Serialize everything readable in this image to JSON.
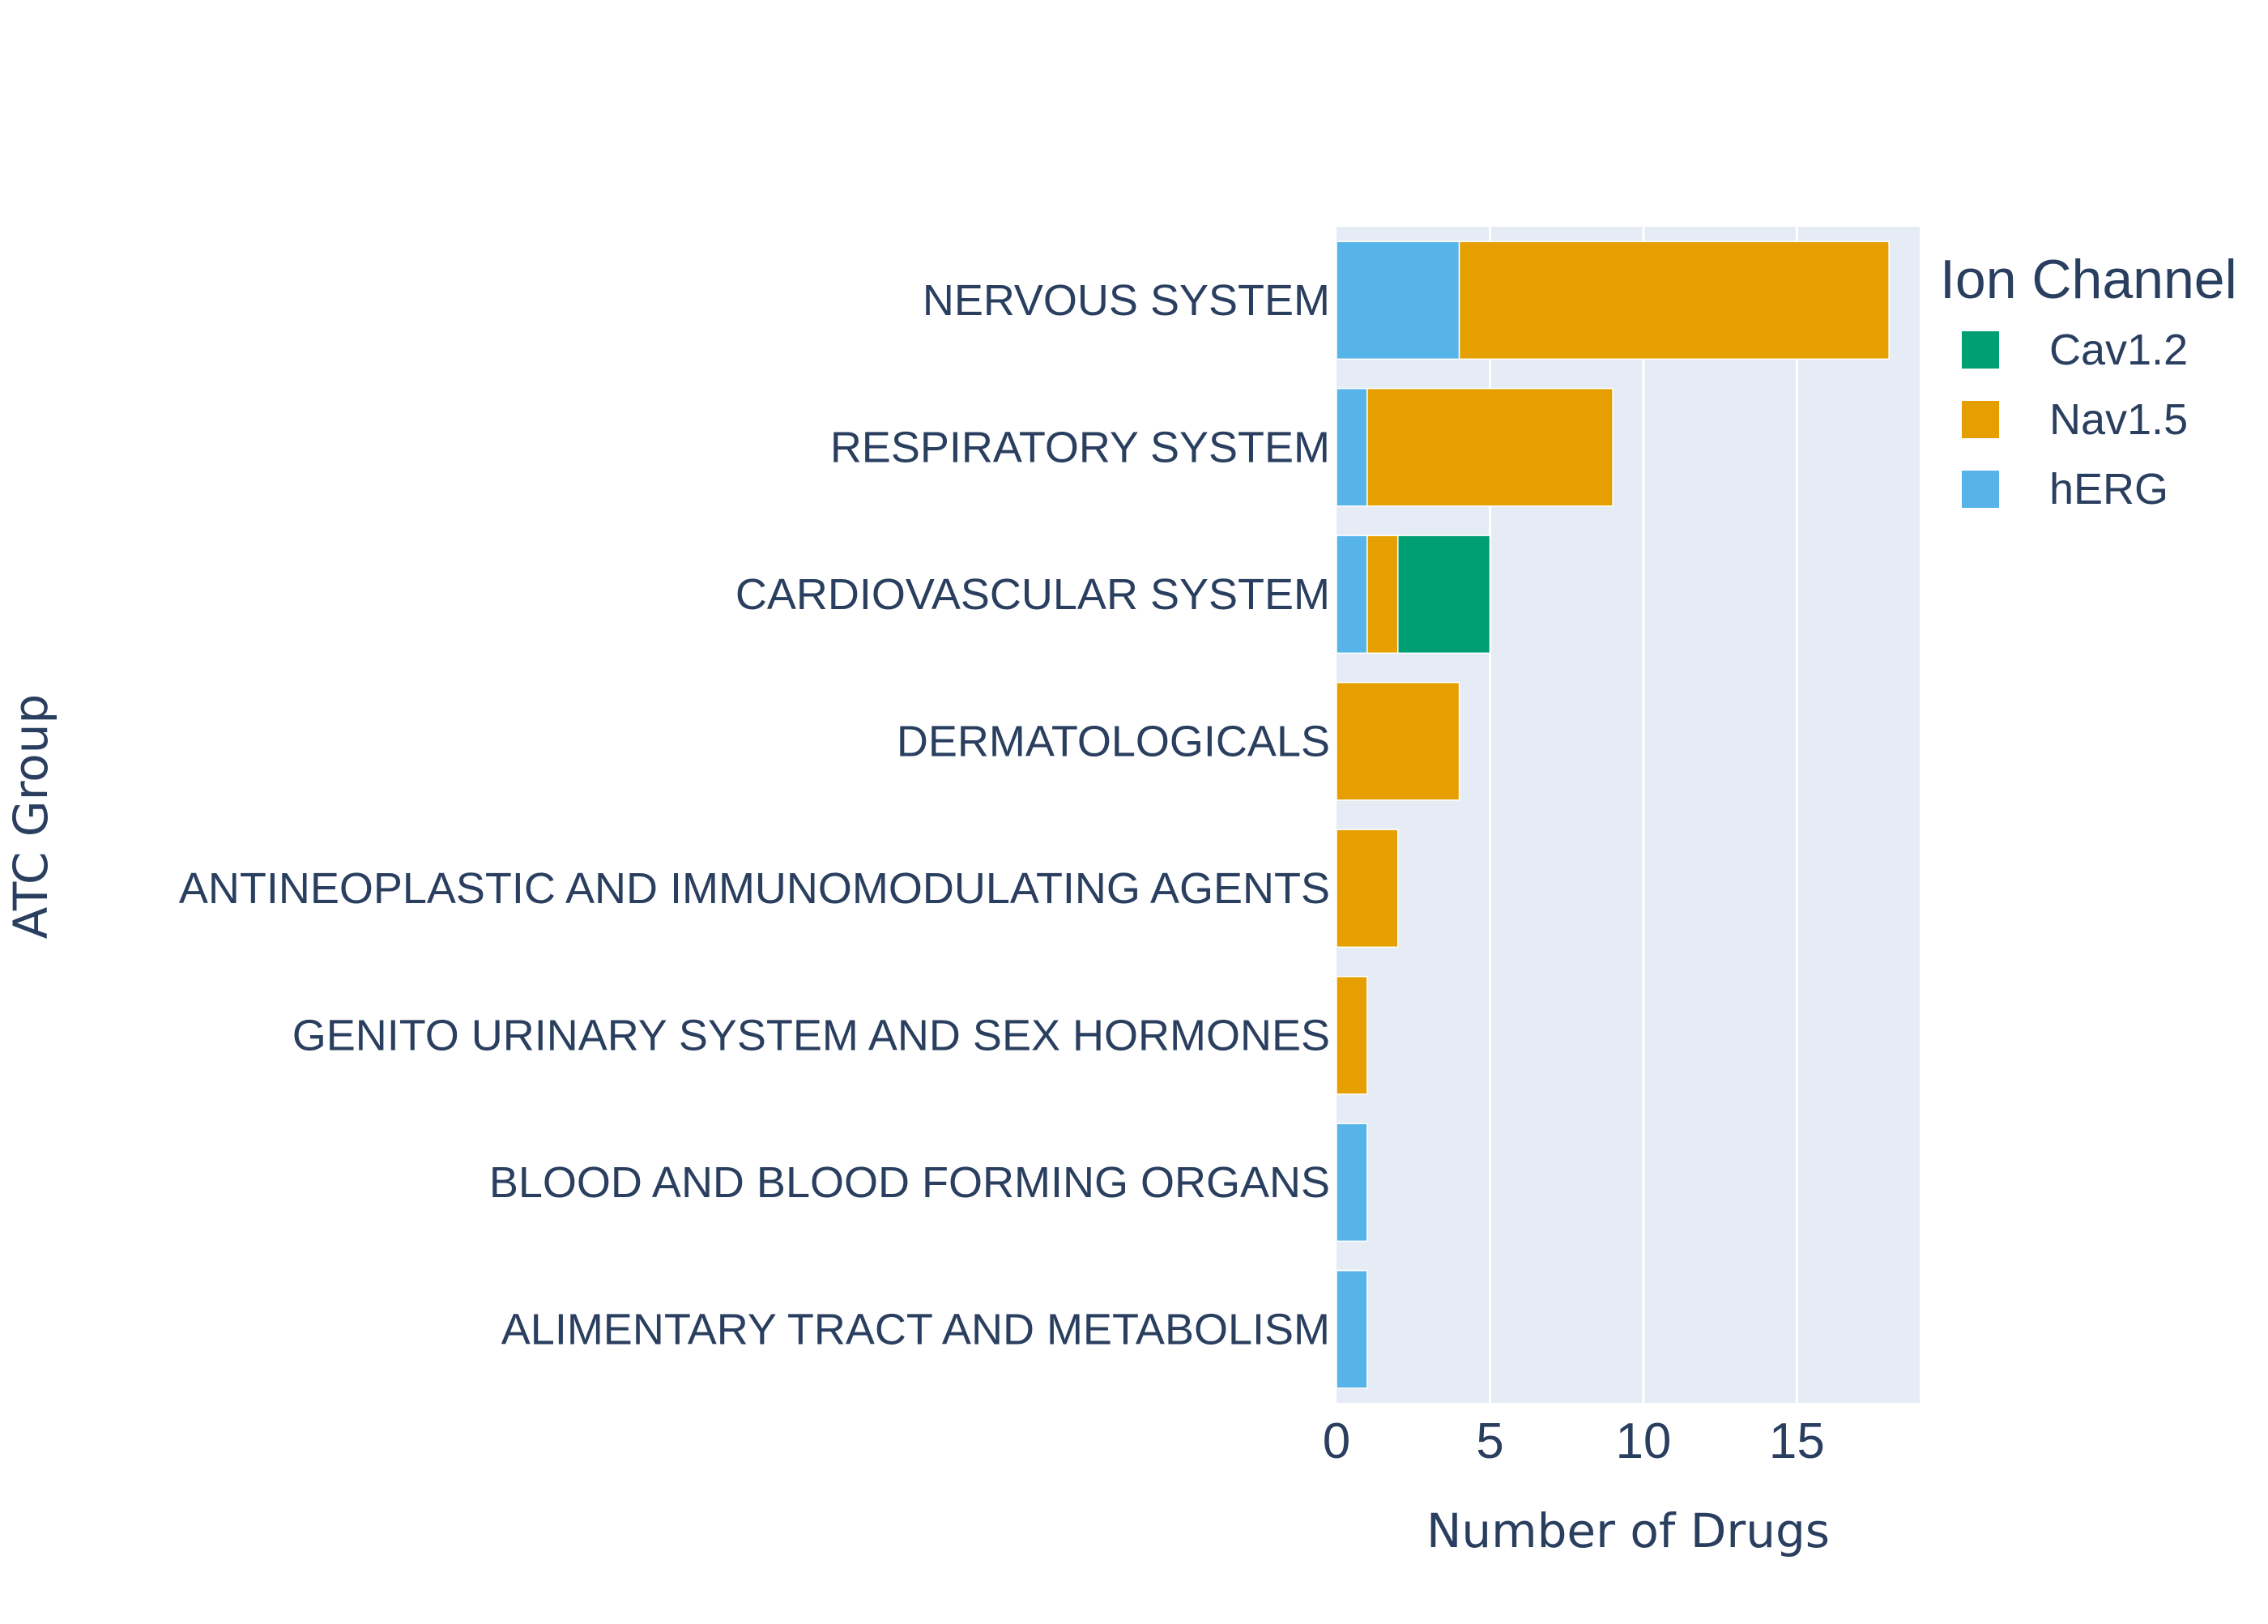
{
  "chart_data": {
    "type": "bar",
    "orientation": "horizontal",
    "barmode": "stack",
    "categories": [
      "NERVOUS SYSTEM",
      "RESPIRATORY SYSTEM",
      "CARDIOVASCULAR SYSTEM",
      "DERMATOLOGICALS",
      "ANTINEOPLASTIC AND IMMUNOMODULATING AGENTS",
      "GENITO URINARY SYSTEM AND SEX HORMONES",
      "BLOOD AND BLOOD FORMING ORGANS",
      "ALIMENTARY TRACT AND METABOLISM"
    ],
    "series": [
      {
        "name": "hERG",
        "color": "#56B4E9",
        "values": [
          4,
          1,
          1,
          0,
          0,
          0,
          1,
          1
        ]
      },
      {
        "name": "Nav1.5",
        "color": "#E69F00",
        "values": [
          14,
          8,
          1,
          4,
          2,
          1,
          0,
          0
        ]
      },
      {
        "name": "Cav1.2",
        "color": "#009E73",
        "values": [
          0,
          0,
          3,
          0,
          0,
          0,
          0,
          0
        ]
      }
    ],
    "xlabel": "Number of Drugs",
    "ylabel": "ATC Group",
    "xlim": [
      0,
      19
    ],
    "xticks": [
      0,
      5,
      10,
      15
    ],
    "xtick_labels": [
      "0",
      "5",
      "10",
      "15"
    ],
    "grid": true,
    "plot_background": "#E5ECF6",
    "legend": {
      "title": "Ion Channel",
      "placement": "right",
      "entries": [
        "Cav1.2",
        "Nav1.5",
        "hERG"
      ]
    }
  }
}
